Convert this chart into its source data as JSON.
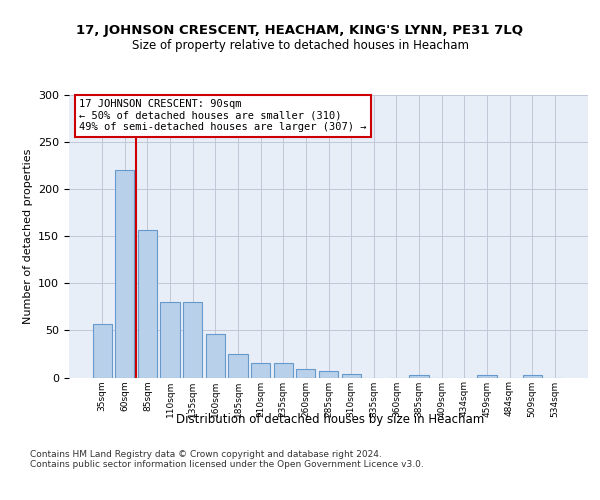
{
  "title": "17, JOHNSON CRESCENT, HEACHAM, KING'S LYNN, PE31 7LQ",
  "subtitle": "Size of property relative to detached houses in Heacham",
  "xlabel": "Distribution of detached houses by size in Heacham",
  "ylabel": "Number of detached properties",
  "bar_values": [
    57,
    220,
    157,
    80,
    80,
    46,
    25,
    15,
    15,
    9,
    7,
    4,
    0,
    0,
    3,
    0,
    0,
    3,
    0,
    3,
    0
  ],
  "bar_labels": [
    "35sqm",
    "60sqm",
    "85sqm",
    "110sqm",
    "135sqm",
    "160sqm",
    "185sqm",
    "210sqm",
    "235sqm",
    "260sqm",
    "285sqm",
    "310sqm",
    "335sqm",
    "360sqm",
    "385sqm",
    "409sqm",
    "434sqm",
    "459sqm",
    "484sqm",
    "509sqm",
    "534sqm"
  ],
  "bar_color": "#b8d0ea",
  "bar_edge_color": "#6699cc",
  "annotation_line1": "17 JOHNSON CRESCENT: 90sqm",
  "annotation_line2": "← 50% of detached houses are smaller (310)",
  "annotation_line3": "49% of semi-detached houses are larger (307) →",
  "annotation_box_facecolor": "#ffffff",
  "annotation_box_edgecolor": "#cc0000",
  "red_line_x": 1.5,
  "ylim": [
    0,
    300
  ],
  "yticks": [
    0,
    50,
    100,
    150,
    200,
    250,
    300
  ],
  "bg_color": "#e8eef8",
  "footer_text": "Contains HM Land Registry data © Crown copyright and database right 2024.\nContains public sector information licensed under the Open Government Licence v3.0.",
  "grid_color": "#c0c8d8"
}
